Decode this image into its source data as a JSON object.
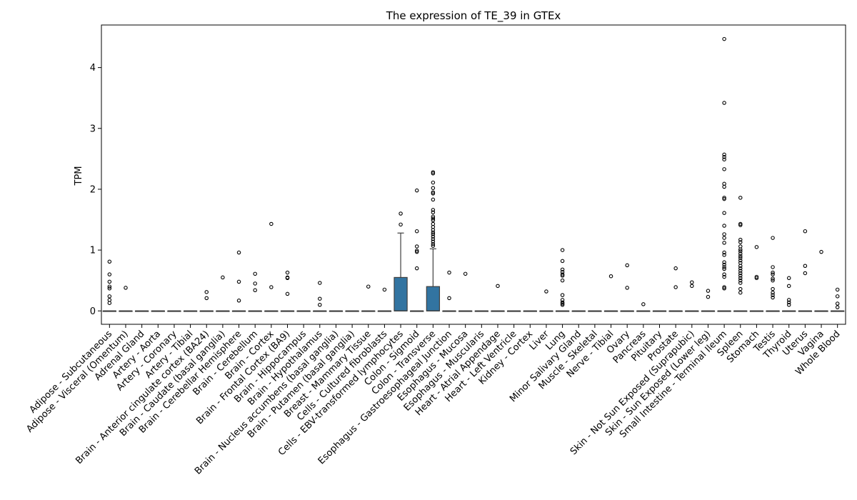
{
  "chart_data": {
    "type": "box",
    "title": "The expression of TE_39 in GTEx",
    "xlabel": "",
    "ylabel": "TPM",
    "ylim": [
      -0.22,
      4.7
    ],
    "yticks": [
      "0",
      "1",
      "2",
      "3",
      "4"
    ],
    "grid": false,
    "legend": "none",
    "box_color": "#3274a1",
    "categories": [
      "Adipose - Subcutaneous",
      "Adipose - Visceral (Omentum)",
      "Adrenal Gland",
      "Artery - Aorta",
      "Artery - Coronary",
      "Artery - Tibial",
      "Brain - Anterior cingulate cortex (BA24)",
      "Brain - Caudate (basal ganglia)",
      "Brain - Cerebellar Hemisphere",
      "Brain - Cerebellum",
      "Brain - Cortex",
      "Brain - Frontal Cortex (BA9)",
      "Brain - Hippocampus",
      "Brain - Hypothalamus",
      "Brain - Nucleus accumbens (basal ganglia)",
      "Brain - Putamen (basal ganglia)",
      "Breast - Mammary Tissue",
      "Cells - Cultured fibroblasts",
      "Cells - EBV-transformed lymphocytes",
      "Colon - Sigmoid",
      "Colon - Transverse",
      "Esophagus - Gastroesophageal Junction",
      "Esophagus - Mucosa",
      "Esophagus - Muscularis",
      "Heart - Atrial Appendage",
      "Heart - Left Ventricle",
      "Kidney - Cortex",
      "Liver",
      "Lung",
      "Minor Salivary Gland",
      "Muscle - Skeletal",
      "Nerve - Tibial",
      "Ovary",
      "Pancreas",
      "Pituitary",
      "Prostate",
      "Skin - Not Sun Exposed (Suprapubic)",
      "Skin - Sun Exposed (Lower leg)",
      "Small Intestine - Terminal Ileum",
      "Spleen",
      "Stomach",
      "Testis",
      "Thyroid",
      "Uterus",
      "Vagina",
      "Whole Blood"
    ],
    "boxes": [
      {
        "q1": 0,
        "median": 0,
        "q3": 0,
        "whislo": 0,
        "whishi": 0,
        "fliers": [
          0.81,
          0.6,
          0.48,
          0.4,
          0.37,
          0.24,
          0.18,
          0.13
        ]
      },
      {
        "q1": 0,
        "median": 0,
        "q3": 0,
        "whislo": 0,
        "whishi": 0,
        "fliers": [
          0.38
        ]
      },
      {
        "q1": 0,
        "median": 0,
        "q3": 0,
        "whislo": 0,
        "whishi": 0,
        "fliers": []
      },
      {
        "q1": 0,
        "median": 0,
        "q3": 0,
        "whislo": 0,
        "whishi": 0,
        "fliers": []
      },
      {
        "q1": 0,
        "median": 0,
        "q3": 0,
        "whislo": 0,
        "whishi": 0,
        "fliers": []
      },
      {
        "q1": 0,
        "median": 0,
        "q3": 0,
        "whislo": 0,
        "whishi": 0,
        "fliers": []
      },
      {
        "q1": 0,
        "median": 0,
        "q3": 0,
        "whislo": 0,
        "whishi": 0,
        "fliers": [
          0.31,
          0.21
        ]
      },
      {
        "q1": 0,
        "median": 0,
        "q3": 0,
        "whislo": 0,
        "whishi": 0,
        "fliers": [
          0.55
        ]
      },
      {
        "q1": 0,
        "median": 0,
        "q3": 0,
        "whislo": 0,
        "whishi": 0,
        "fliers": [
          0.96,
          0.48,
          0.17
        ]
      },
      {
        "q1": 0,
        "median": 0,
        "q3": 0,
        "whislo": 0,
        "whishi": 0,
        "fliers": [
          0.61,
          0.45,
          0.34
        ]
      },
      {
        "q1": 0,
        "median": 0,
        "q3": 0,
        "whislo": 0,
        "whishi": 0,
        "fliers": [
          1.43,
          0.39
        ]
      },
      {
        "q1": 0,
        "median": 0,
        "q3": 0,
        "whislo": 0,
        "whishi": 0,
        "fliers": [
          0.63,
          0.55,
          0.54,
          0.28
        ]
      },
      {
        "q1": 0,
        "median": 0,
        "q3": 0,
        "whislo": 0,
        "whishi": 0,
        "fliers": []
      },
      {
        "q1": 0,
        "median": 0,
        "q3": 0,
        "whislo": 0,
        "whishi": 0,
        "fliers": [
          0.46,
          0.2,
          0.1
        ]
      },
      {
        "q1": 0,
        "median": 0,
        "q3": 0,
        "whislo": 0,
        "whishi": 0,
        "fliers": []
      },
      {
        "q1": 0,
        "median": 0,
        "q3": 0,
        "whislo": 0,
        "whishi": 0,
        "fliers": []
      },
      {
        "q1": 0,
        "median": 0,
        "q3": 0,
        "whislo": 0,
        "whishi": 0,
        "fliers": [
          0.4
        ]
      },
      {
        "q1": 0,
        "median": 0,
        "q3": 0,
        "whislo": 0,
        "whishi": 0,
        "fliers": [
          0.35
        ]
      },
      {
        "q1": 0,
        "median": 0,
        "q3": 0.55,
        "whislo": 0,
        "whishi": 1.28,
        "fliers": [
          1.6,
          1.42
        ]
      },
      {
        "q1": 0,
        "median": 0,
        "q3": 0,
        "whislo": 0,
        "whishi": 0,
        "fliers": [
          1.98,
          1.31,
          1.06,
          0.99,
          0.97,
          0.7
        ]
      },
      {
        "q1": 0,
        "median": 0,
        "q3": 0.4,
        "whislo": 0,
        "whishi": 1.02,
        "fliers": [
          2.28,
          2.26,
          2.11,
          2.02,
          1.95,
          1.93,
          1.83,
          1.66,
          1.62,
          1.55,
          1.52,
          1.49,
          1.43,
          1.38,
          1.33,
          1.29,
          1.26,
          1.22,
          1.18,
          1.14,
          1.1,
          1.07
        ]
      },
      {
        "q1": 0,
        "median": 0,
        "q3": 0,
        "whislo": 0,
        "whishi": 0,
        "fliers": [
          0.63,
          0.21
        ]
      },
      {
        "q1": 0,
        "median": 0,
        "q3": 0,
        "whislo": 0,
        "whishi": 0,
        "fliers": [
          0.61
        ]
      },
      {
        "q1": 0,
        "median": 0,
        "q3": 0,
        "whislo": 0,
        "whishi": 0,
        "fliers": []
      },
      {
        "q1": 0,
        "median": 0,
        "q3": 0,
        "whislo": 0,
        "whishi": 0,
        "fliers": [
          0.41
        ]
      },
      {
        "q1": 0,
        "median": 0,
        "q3": 0,
        "whislo": 0,
        "whishi": 0,
        "fliers": []
      },
      {
        "q1": 0,
        "median": 0,
        "q3": 0,
        "whislo": 0,
        "whishi": 0,
        "fliers": []
      },
      {
        "q1": 0,
        "median": 0,
        "q3": 0,
        "whislo": 0,
        "whishi": 0,
        "fliers": [
          0.32
        ]
      },
      {
        "q1": 0,
        "median": 0,
        "q3": 0,
        "whislo": 0,
        "whishi": 0,
        "fliers": [
          1.0,
          0.82,
          0.68,
          0.64,
          0.6,
          0.58,
          0.5,
          0.26,
          0.18,
          0.14,
          0.12,
          0.1
        ]
      },
      {
        "q1": 0,
        "median": 0,
        "q3": 0,
        "whislo": 0,
        "whishi": 0,
        "fliers": []
      },
      {
        "q1": 0,
        "median": 0,
        "q3": 0,
        "whislo": 0,
        "whishi": 0,
        "fliers": []
      },
      {
        "q1": 0,
        "median": 0,
        "q3": 0,
        "whislo": 0,
        "whishi": 0,
        "fliers": [
          0.57
        ]
      },
      {
        "q1": 0,
        "median": 0,
        "q3": 0,
        "whislo": 0,
        "whishi": 0,
        "fliers": [
          0.75,
          0.38
        ]
      },
      {
        "q1": 0,
        "median": 0,
        "q3": 0,
        "whislo": 0,
        "whishi": 0,
        "fliers": [
          0.11
        ]
      },
      {
        "q1": 0,
        "median": 0,
        "q3": 0,
        "whislo": 0,
        "whishi": 0,
        "fliers": []
      },
      {
        "q1": 0,
        "median": 0,
        "q3": 0,
        "whislo": 0,
        "whishi": 0,
        "fliers": [
          0.7,
          0.39
        ]
      },
      {
        "q1": 0,
        "median": 0,
        "q3": 0,
        "whislo": 0,
        "whishi": 0,
        "fliers": [
          0.47,
          0.41
        ]
      },
      {
        "q1": 0,
        "median": 0,
        "q3": 0,
        "whislo": 0,
        "whishi": 0,
        "fliers": [
          0.33,
          0.23
        ]
      },
      {
        "q1": 0,
        "median": 0,
        "q3": 0,
        "whislo": 0,
        "whishi": 0,
        "fliers": [
          4.47,
          3.42,
          2.57,
          2.53,
          2.49,
          2.33,
          2.09,
          2.04,
          1.86,
          1.84,
          1.61,
          1.4,
          1.26,
          1.2,
          1.12,
          0.96,
          0.92,
          0.8,
          0.76,
          0.72,
          0.69,
          0.6,
          0.56,
          0.39,
          0.37
        ]
      },
      {
        "q1": 0,
        "median": 0,
        "q3": 0,
        "whislo": 0,
        "whishi": 0,
        "fliers": [
          1.86,
          1.43,
          1.41,
          1.17,
          1.13,
          1.06,
          1.01,
          0.98,
          0.94,
          0.9,
          0.87,
          0.83,
          0.79,
          0.74,
          0.7,
          0.66,
          0.62,
          0.58,
          0.54,
          0.5,
          0.46,
          0.36,
          0.3
        ]
      },
      {
        "q1": 0,
        "median": 0,
        "q3": 0,
        "whislo": 0,
        "whishi": 0,
        "fliers": [
          1.05,
          0.56,
          0.54
        ]
      },
      {
        "q1": 0,
        "median": 0,
        "q3": 0,
        "whislo": 0,
        "whishi": 0,
        "fliers": [
          1.2,
          0.72,
          0.63,
          0.6,
          0.53,
          0.5,
          0.36,
          0.3,
          0.26,
          0.22
        ]
      },
      {
        "q1": 0,
        "median": 0,
        "q3": 0,
        "whislo": 0,
        "whishi": 0,
        "fliers": [
          0.54,
          0.41,
          0.18,
          0.14,
          0.1
        ]
      },
      {
        "q1": 0,
        "median": 0,
        "q3": 0,
        "whislo": 0,
        "whishi": 0,
        "fliers": [
          1.31,
          0.74,
          0.62
        ]
      },
      {
        "q1": 0,
        "median": 0,
        "q3": 0,
        "whislo": 0,
        "whishi": 0,
        "fliers": [
          0.97
        ]
      },
      {
        "q1": 0,
        "median": 0,
        "q3": 0,
        "whislo": 0,
        "whishi": 0,
        "fliers": [
          0.35,
          0.24,
          0.12,
          0.06
        ]
      }
    ]
  }
}
